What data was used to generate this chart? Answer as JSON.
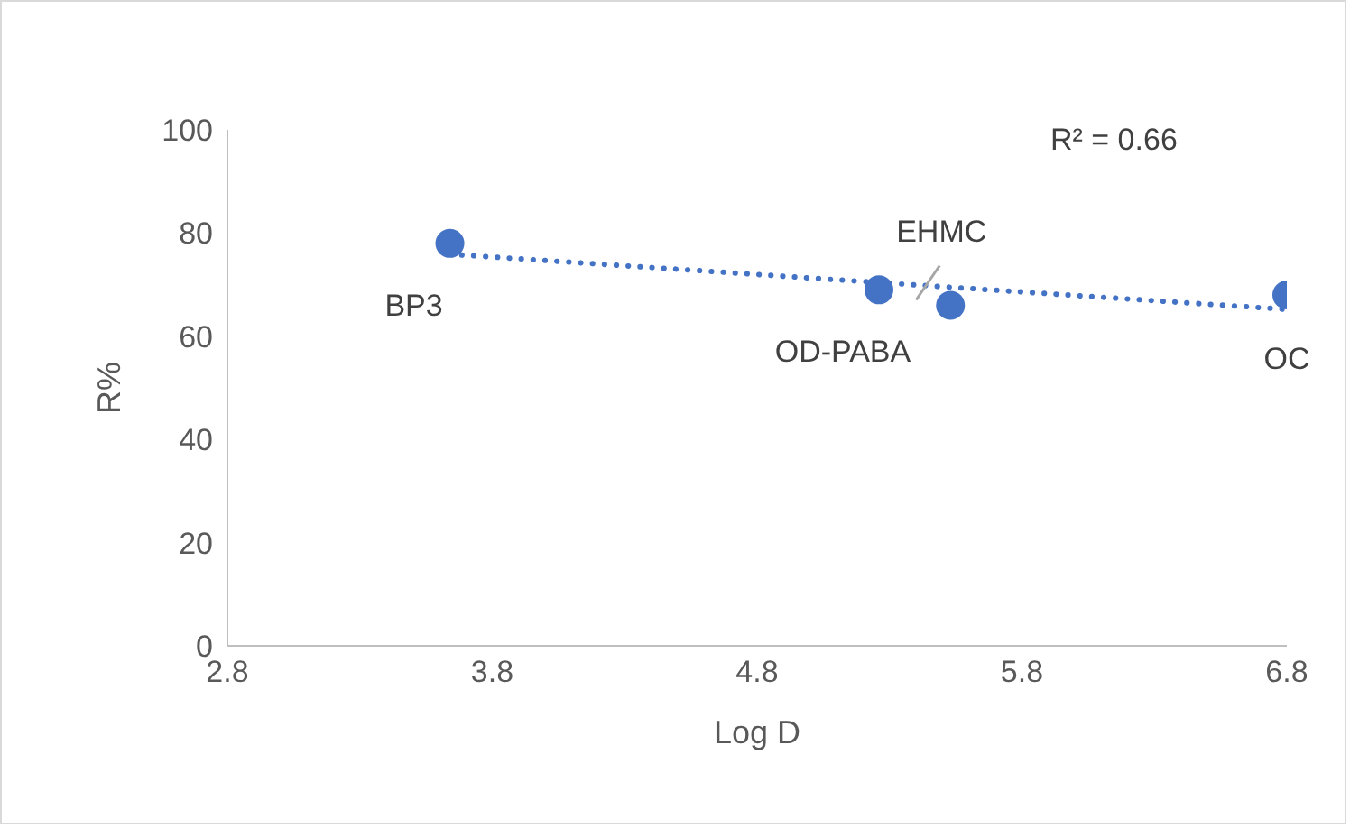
{
  "chart_data": {
    "type": "scatter",
    "xlabel": "Log D",
    "ylabel": "R%",
    "xlim": [
      2.8,
      6.8
    ],
    "xticks": [
      2.8,
      3.8,
      4.8,
      5.8,
      6.8
    ],
    "ylim": [
      0,
      100
    ],
    "yticks": [
      0,
      20,
      40,
      60,
      80,
      100
    ],
    "grid": false,
    "marker": "circle",
    "series": [
      {
        "type": "scatter",
        "color": "#4472c4",
        "x": [
          3.64,
          5.26,
          5.53,
          6.8
        ],
        "values": [
          78,
          69,
          66,
          68
        ]
      },
      {
        "type": "line",
        "color": "#4472c4",
        "line_style": "dotted",
        "marker": "none",
        "x": [
          3.64,
          6.8
        ],
        "values": [
          75.9,
          65.2
        ]
      }
    ],
    "annotations": [
      "R² = 0.66",
      {
        "text": "BP3",
        "x": 3.64,
        "y": 78
      },
      {
        "text": "OD-PABA",
        "x": 5.26,
        "y": 69
      },
      {
        "text": "EHMC",
        "x": 5.53,
        "y": 66
      },
      {
        "text": "OC",
        "x": 6.8,
        "y": 68
      }
    ]
  }
}
